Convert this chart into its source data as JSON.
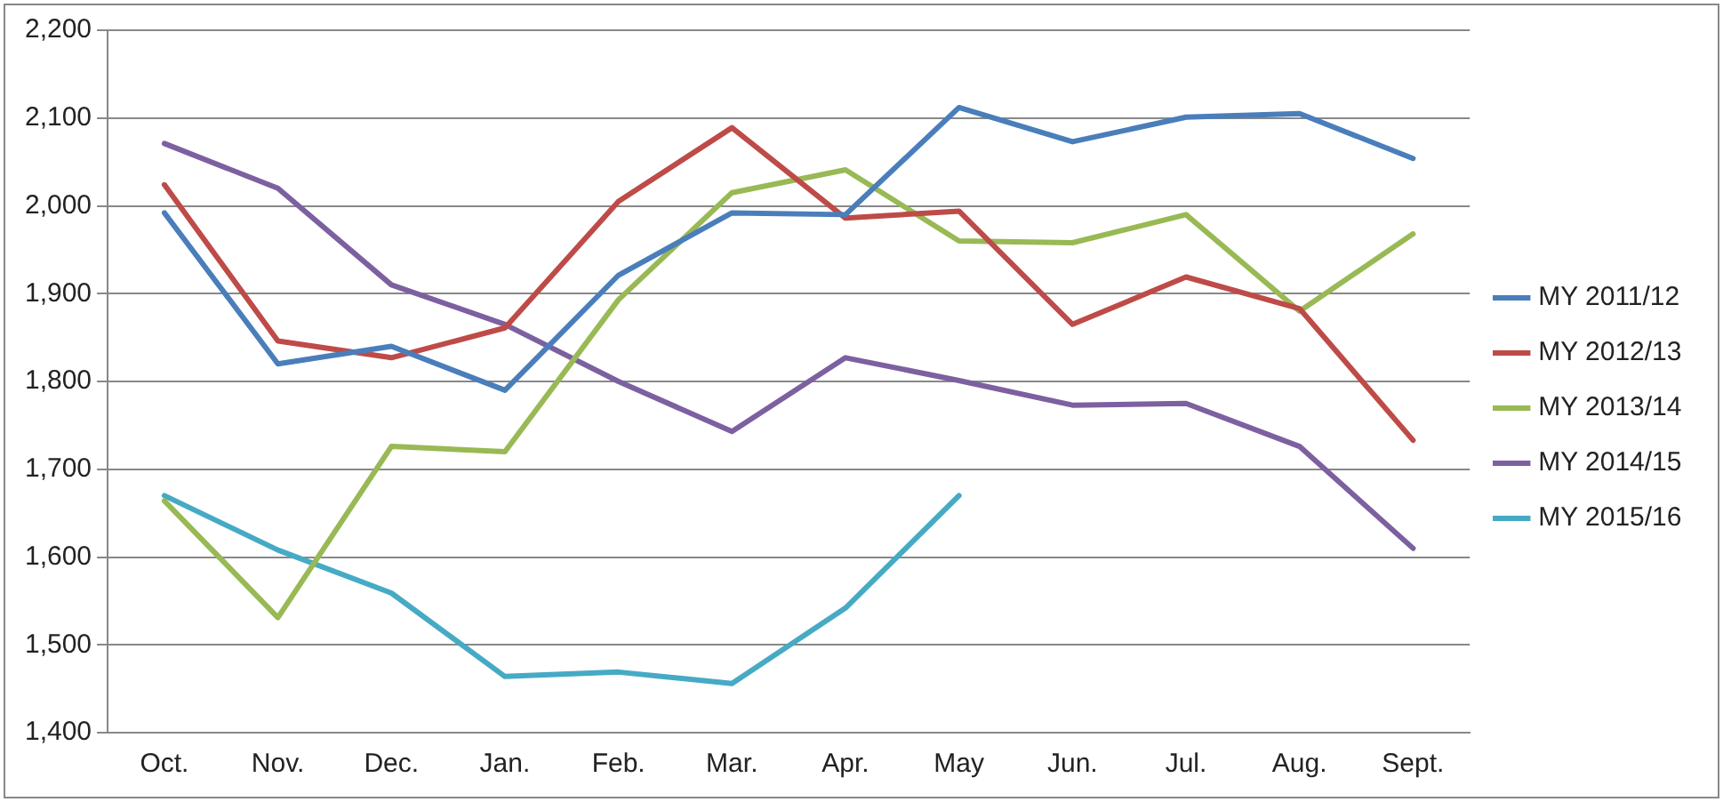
{
  "chart_data": {
    "type": "line",
    "categories": [
      "Oct.",
      "Nov.",
      "Dec.",
      "Jan.",
      "Feb.",
      "Mar.",
      "Apr.",
      "May",
      "Jun.",
      "Jul.",
      "Aug.",
      "Sept."
    ],
    "series": [
      {
        "name": "MY 2011/12",
        "color": "#4a7ebb",
        "values": [
          1992,
          1820,
          1840,
          1790,
          1921,
          1992,
          1990,
          2112,
          2073,
          2101,
          2105,
          2054
        ]
      },
      {
        "name": "MY 2012/13",
        "color": "#be4b48",
        "values": [
          2024,
          1846,
          1827,
          1861,
          2005,
          2089,
          1986,
          1994,
          1865,
          1919,
          1883,
          1733
        ]
      },
      {
        "name": "MY 2013/14",
        "color": "#98b954",
        "values": [
          1664,
          1531,
          1726,
          1720,
          1893,
          2015,
          2041,
          1960,
          1958,
          1990,
          1880,
          1968
        ]
      },
      {
        "name": "MY 2014/15",
        "color": "#7d60a0",
        "values": [
          2071,
          2020,
          1910,
          1865,
          1800,
          1743,
          1827,
          1801,
          1773,
          1775,
          1726,
          1610
        ]
      },
      {
        "name": "MY 2015/16",
        "color": "#46aac5",
        "values": [
          1670,
          1608,
          1559,
          1464,
          1469,
          1456,
          1542,
          1670,
          null,
          null,
          null,
          null
        ]
      }
    ],
    "ylim": [
      1400,
      2200
    ],
    "yticks": [
      {
        "value": 1400,
        "label": "1,400"
      },
      {
        "value": 1500,
        "label": "1,500"
      },
      {
        "value": 1600,
        "label": "1,600"
      },
      {
        "value": 1700,
        "label": "1,700"
      },
      {
        "value": 1800,
        "label": "1,800"
      },
      {
        "value": 1900,
        "label": "1,900"
      },
      {
        "value": 2000,
        "label": "2,000"
      },
      {
        "value": 2100,
        "label": "2,100"
      },
      {
        "value": 2200,
        "label": "2,200"
      }
    ],
    "grid": "y",
    "legend": "right",
    "marker": "none",
    "line_style": "solid"
  }
}
